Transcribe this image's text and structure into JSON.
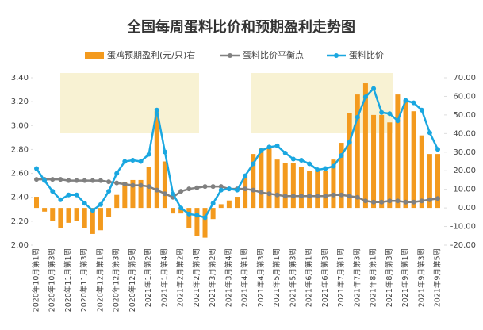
{
  "chart_data": {
    "type": "combo",
    "title": "全国每周蛋料比价和预期盈利走势图",
    "categories": [
      "2020年10月第1周",
      null,
      "2020年10月第3周",
      null,
      "2020年11月第1周",
      null,
      "2020年11月第3周",
      null,
      "2020年12月第1周",
      null,
      "2020年12月第3周",
      null,
      "2020年12月第5周",
      null,
      "2021年1月第2周",
      null,
      "2021年1月第4周",
      null,
      "2021年2月第2周",
      null,
      "2021年2月第4周",
      null,
      "2021年3月第2周",
      null,
      "2021年3月第4周",
      null,
      "2021年4月第1周",
      null,
      "2021年4月第3周",
      null,
      "2021年5月第1周",
      null,
      "2021年5月第3周",
      null,
      "2021年6月第1周",
      null,
      "2021年6月第3周",
      null,
      "2021年7月第1周",
      null,
      "2021年7月第3周",
      null,
      "2021年8月第1周",
      null,
      "2021年8月第3周",
      null,
      "2021年9月第1周",
      null,
      "2021年9月第3周",
      null,
      "2021年9月第5周"
    ],
    "series": [
      {
        "name": "蛋鸡预期盈利(元/只)右",
        "kind": "bar",
        "axis": "y2",
        "color": "#f39a1e",
        "values": [
          6,
          -2,
          -7,
          -11,
          -8,
          -7,
          -11,
          -14,
          -12,
          -5,
          7,
          14,
          15,
          15,
          22,
          52,
          25,
          -3,
          -3,
          -11,
          -15,
          -16,
          -6,
          2,
          4,
          6,
          17,
          29,
          32,
          32,
          26,
          24,
          24,
          22,
          20,
          20,
          20,
          26,
          35,
          51,
          61,
          67,
          50,
          50,
          46,
          61,
          58,
          52,
          39,
          29,
          29
        ]
      },
      {
        "name": "蛋料比价平衡点",
        "kind": "line",
        "color": "#808080",
        "values": [
          2.55,
          2.55,
          2.55,
          2.55,
          2.54,
          2.54,
          2.54,
          2.54,
          2.54,
          2.53,
          2.52,
          2.51,
          2.5,
          2.5,
          2.49,
          2.46,
          2.43,
          2.4,
          2.45,
          2.47,
          2.48,
          2.49,
          2.49,
          2.49,
          2.47,
          2.47,
          2.47,
          2.46,
          2.44,
          2.43,
          2.42,
          2.41,
          2.41,
          2.41,
          2.41,
          2.41,
          2.41,
          2.42,
          2.42,
          2.41,
          2.4,
          2.37,
          2.36,
          2.36,
          2.37,
          2.37,
          2.36,
          2.36,
          2.37,
          2.38,
          2.39
        ]
      },
      {
        "name": "蛋料比价",
        "kind": "line",
        "color": "#1aa7e0",
        "values": [
          2.64,
          2.54,
          2.45,
          2.38,
          2.42,
          2.42,
          2.35,
          2.29,
          2.34,
          2.45,
          2.6,
          2.7,
          2.71,
          2.7,
          2.76,
          3.13,
          2.78,
          2.43,
          2.31,
          2.26,
          2.25,
          2.23,
          2.35,
          2.46,
          2.47,
          2.46,
          2.58,
          2.68,
          2.79,
          2.82,
          2.83,
          2.77,
          2.72,
          2.71,
          2.68,
          2.63,
          2.64,
          2.66,
          2.75,
          2.86,
          3.07,
          3.24,
          3.31,
          3.11,
          3.1,
          3.04,
          3.21,
          3.19,
          3.13,
          2.94,
          2.8
        ]
      }
    ],
    "ylim": [
      2.0,
      3.4
    ],
    "yticks": [
      {
        "value": 2.0,
        "label": "2.00"
      },
      {
        "value": 2.2,
        "label": "2.20"
      },
      {
        "value": 2.4,
        "label": "2.40"
      },
      {
        "value": 2.6,
        "label": "2.60"
      },
      {
        "value": 2.8,
        "label": "2.80"
      },
      {
        "value": 3.0,
        "label": "3.00"
      },
      {
        "value": 3.2,
        "label": "3.20"
      },
      {
        "value": 3.4,
        "label": "3.40"
      }
    ],
    "y2lim": [
      -20,
      70
    ],
    "y2ticks": [
      {
        "value": -20,
        "label": "-20.00"
      },
      {
        "value": -10,
        "label": "-10.00"
      },
      {
        "value": 0,
        "label": "0.00"
      },
      {
        "value": 10,
        "label": "10.00"
      },
      {
        "value": 20,
        "label": "20.00"
      },
      {
        "value": 30,
        "label": "30.00"
      },
      {
        "value": 40,
        "label": "40.00"
      },
      {
        "value": 50,
        "label": "50.00"
      },
      {
        "value": 60,
        "label": "60.00"
      },
      {
        "value": 70,
        "label": "70.00"
      }
    ],
    "legend": "top"
  }
}
